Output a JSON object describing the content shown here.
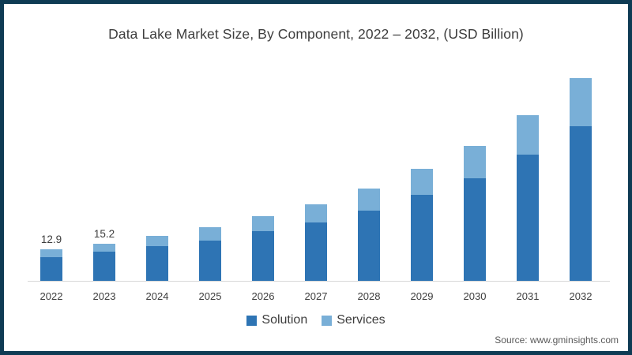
{
  "title": "Data Lake Market Size, By Component, 2022 – 2032, (USD Billion)",
  "source_note": "Source: www.gminsights.com",
  "legend": {
    "items": [
      {
        "label": "Solution",
        "color": "#2e74b4"
      },
      {
        "label": "Services",
        "color": "#79afd7"
      }
    ]
  },
  "colors": {
    "solution": "#2e74b4",
    "services": "#79afd7",
    "frame_border": "#0e3b54",
    "axis_line": "#d9d9d9",
    "text": "#3d3d3d",
    "source_text": "#595959"
  },
  "chart_data": {
    "type": "bar",
    "stacked": true,
    "title": "Data Lake Market Size, By Component, 2022 – 2032, (USD Billion)",
    "xlabel": "",
    "ylabel": "USD Billion",
    "categories": [
      "2022",
      "2023",
      "2024",
      "2025",
      "2026",
      "2027",
      "2028",
      "2029",
      "2030",
      "2031",
      "2032"
    ],
    "series": [
      {
        "name": "Solution",
        "color": "#2e74b4",
        "values": [
          9.8,
          12.0,
          14.3,
          16.6,
          20.3,
          24.0,
          28.7,
          35.0,
          42.0,
          51.5,
          63.0
        ]
      },
      {
        "name": "Services",
        "color": "#79afd7",
        "values": [
          3.1,
          3.2,
          4.0,
          5.5,
          6.0,
          7.5,
          8.8,
          10.5,
          13.0,
          16.0,
          19.5
        ]
      }
    ],
    "totals": [
      12.9,
      15.2,
      18.3,
      22.1,
      26.3,
      31.5,
      37.5,
      45.5,
      55.0,
      67.5,
      82.5
    ],
    "data_labels": {
      "2022": "12.9",
      "2023": "15.2"
    },
    "ylim": [
      0,
      90
    ],
    "grid": false,
    "y_axis_shown": false,
    "legend_position": "bottom"
  }
}
